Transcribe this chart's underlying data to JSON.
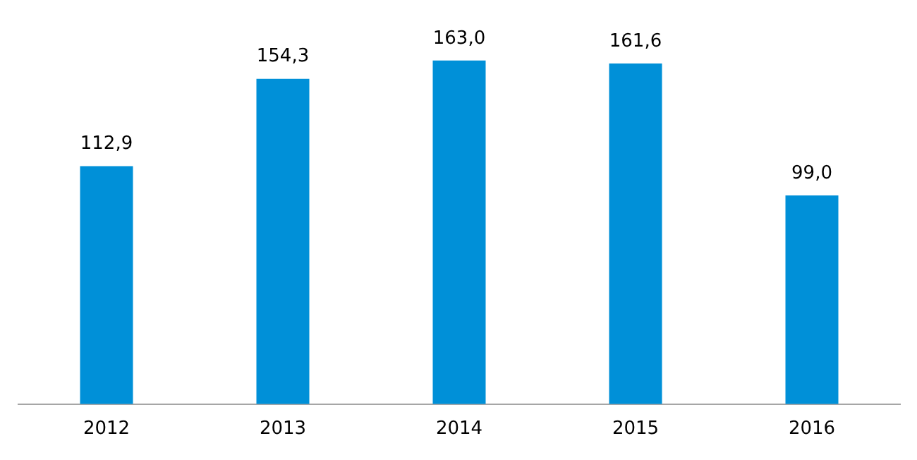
{
  "chart_data": {
    "type": "bar",
    "categories": [
      "2012",
      "2013",
      "2014",
      "2015",
      "2016"
    ],
    "values": [
      112.9,
      154.3,
      163.0,
      161.6,
      99.0
    ],
    "value_labels": [
      "112,9",
      "154,3",
      "163,0",
      "161,6",
      "99,0"
    ],
    "color": "#0090d8",
    "grid": false,
    "legend": false
  }
}
